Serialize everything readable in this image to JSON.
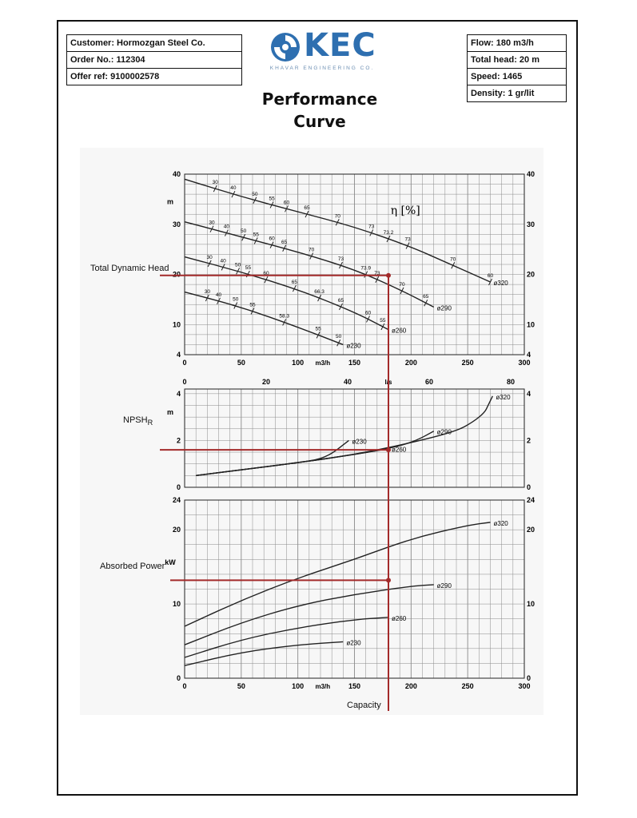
{
  "header": {
    "customer": "Customer: Hormozgan Steel Co.",
    "order_no": "Order No.: 112304",
    "offer_ref": "Offer ref: 9100002578",
    "flow": "Flow: 180 m3/h",
    "total_head": "Total head: 20 m",
    "speed": "Speed: 1465",
    "density": "Density: 1 gr/lit",
    "logo_text": "KEC",
    "logo_subtitle": "KHAVAR ENGINEERING CO.",
    "title_line1": "Performance",
    "title_line2": "Curve"
  },
  "colors": {
    "curve": "#222222",
    "operating_point": "#a32a2a",
    "grid": "#8a8a8a",
    "logo": "#2e6fb0"
  },
  "chart_data": [
    {
      "type": "line",
      "title": "Total Dynamic Head",
      "ylabel_unit": "m",
      "xlabel": "m3/h",
      "xlim": [
        0,
        300
      ],
      "ylim": [
        4,
        40
      ],
      "xticks": [
        0,
        50,
        100,
        150,
        200,
        250,
        300
      ],
      "yticks": [
        4,
        10,
        20,
        30,
        40
      ],
      "secondary_x_unit": "l/s",
      "secondary_xticks": [
        0,
        20,
        40,
        60,
        80
      ],
      "efficiency_label": "η [%]",
      "series": [
        {
          "name": "ø320",
          "x": [
            0,
            50,
            100,
            150,
            200,
            230,
            270
          ],
          "y": [
            39,
            35.5,
            32.5,
            29.5,
            25.5,
            22.5,
            18.5
          ],
          "eff_marks": [
            {
              "x": 27,
              "label": "30"
            },
            {
              "x": 43,
              "label": "40"
            },
            {
              "x": 62,
              "label": "50"
            },
            {
              "x": 77,
              "label": "55"
            },
            {
              "x": 90,
              "label": "60"
            },
            {
              "x": 108,
              "label": "65"
            },
            {
              "x": 135,
              "label": "70"
            },
            {
              "x": 165,
              "label": "73"
            },
            {
              "x": 180,
              "label": "73.2"
            },
            {
              "x": 197,
              "label": "73"
            },
            {
              "x": 237,
              "label": "70"
            },
            {
              "x": 270,
              "label": "60"
            }
          ]
        },
        {
          "name": "ø290",
          "x": [
            0,
            50,
            100,
            150,
            190,
            220
          ],
          "y": [
            30.5,
            27.5,
            24.5,
            21,
            17,
            13.5
          ],
          "eff_marks": [
            {
              "x": 24,
              "label": "30"
            },
            {
              "x": 37,
              "label": "40"
            },
            {
              "x": 52,
              "label": "50"
            },
            {
              "x": 63,
              "label": "55"
            },
            {
              "x": 77,
              "label": "60"
            },
            {
              "x": 88,
              "label": "65"
            },
            {
              "x": 112,
              "label": "70"
            },
            {
              "x": 138,
              "label": "73"
            },
            {
              "x": 160,
              "label": "73.9"
            },
            {
              "x": 170,
              "label": "73"
            },
            {
              "x": 192,
              "label": "70"
            },
            {
              "x": 213,
              "label": "65"
            }
          ]
        },
        {
          "name": "ø260",
          "x": [
            0,
            50,
            100,
            150,
            180
          ],
          "y": [
            23.5,
            20.5,
            17,
            12.5,
            9
          ],
          "eff_marks": [
            {
              "x": 22,
              "label": "30"
            },
            {
              "x": 34,
              "label": "40"
            },
            {
              "x": 47,
              "label": "50"
            },
            {
              "x": 56,
              "label": "55"
            },
            {
              "x": 72,
              "label": "60"
            },
            {
              "x": 97,
              "label": "65"
            },
            {
              "x": 119,
              "label": "66.3"
            },
            {
              "x": 138,
              "label": "65"
            },
            {
              "x": 162,
              "label": "60"
            },
            {
              "x": 175,
              "label": "55"
            }
          ]
        },
        {
          "name": "ø230",
          "x": [
            0,
            50,
            100,
            140
          ],
          "y": [
            16.5,
            13.5,
            9.5,
            6
          ],
          "eff_marks": [
            {
              "x": 20,
              "label": "30"
            },
            {
              "x": 30,
              "label": "40"
            },
            {
              "x": 45,
              "label": "50"
            },
            {
              "x": 60,
              "label": "55"
            },
            {
              "x": 88,
              "label": "58.3"
            },
            {
              "x": 118,
              "label": "55"
            },
            {
              "x": 136,
              "label": "50"
            }
          ]
        }
      ]
    },
    {
      "type": "line",
      "title": "NPSHR",
      "ylabel_unit": "m",
      "xlim": [
        0,
        300
      ],
      "ylim": [
        0,
        4.2
      ],
      "yticks": [
        0,
        2,
        4
      ],
      "series": [
        {
          "name": "ø230",
          "x": [
            10,
            50,
            100,
            125,
            145
          ],
          "y": [
            0.5,
            0.75,
            1.05,
            1.25,
            2.0
          ]
        },
        {
          "name": "ø260",
          "x": [
            10,
            50,
            100,
            150,
            180
          ],
          "y": [
            0.5,
            0.75,
            1.05,
            1.4,
            1.65
          ]
        },
        {
          "name": "ø290",
          "x": [
            10,
            50,
            100,
            150,
            185,
            205,
            220
          ],
          "y": [
            0.5,
            0.75,
            1.05,
            1.4,
            1.7,
            2.0,
            2.4
          ]
        },
        {
          "name": "ø320",
          "x": [
            10,
            50,
            100,
            150,
            200,
            240,
            255,
            265,
            268,
            272
          ],
          "y": [
            0.5,
            0.75,
            1.05,
            1.4,
            1.9,
            2.4,
            2.8,
            3.2,
            3.5,
            3.9
          ]
        }
      ]
    },
    {
      "type": "line",
      "title": "Absorbed Power",
      "ylabel_unit": "kW",
      "xlabel": "m3/h",
      "axis_caption": "Capacity",
      "xlim": [
        0,
        300
      ],
      "ylim": [
        0,
        24
      ],
      "xticks": [
        0,
        50,
        100,
        150,
        200,
        250,
        300
      ],
      "yticks": [
        0,
        10,
        20,
        24
      ],
      "series": [
        {
          "name": "ø320",
          "x": [
            0,
            50,
            100,
            150,
            200,
            250,
            270
          ],
          "y": [
            7,
            10.5,
            13.5,
            16,
            18.8,
            20.6,
            21
          ]
        },
        {
          "name": "ø290",
          "x": [
            0,
            50,
            100,
            150,
            200,
            220
          ],
          "y": [
            4.5,
            7.5,
            9.8,
            11.3,
            12.4,
            12.6
          ]
        },
        {
          "name": "ø260",
          "x": [
            0,
            50,
            100,
            150,
            180
          ],
          "y": [
            2.8,
            5.2,
            6.8,
            7.9,
            8.2
          ]
        },
        {
          "name": "ø230",
          "x": [
            0,
            50,
            100,
            140
          ],
          "y": [
            1.7,
            3.5,
            4.5,
            4.9
          ]
        }
      ]
    }
  ],
  "operating_point": {
    "flow": 180,
    "head": 19.8,
    "npshr": 1.6,
    "power": 13.2
  },
  "labels": {
    "tdh": "Total Dynamic Head",
    "npsh": "NPSH",
    "npsh_sub": "R",
    "power": "Absorbed Power",
    "capacity": "Capacity"
  }
}
